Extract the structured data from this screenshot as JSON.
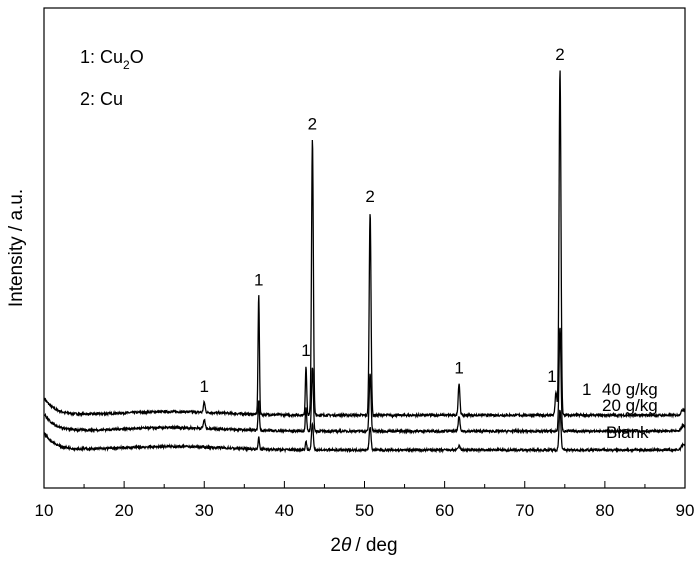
{
  "chart_data": {
    "type": "line",
    "title": "",
    "xlabel_prefix": "2",
    "xlabel_theta": "θ",
    "xlabel_suffix": "/ deg",
    "ylabel": "Intensity / a.u.",
    "xlim": [
      10,
      90
    ],
    "x_ticks": [
      "10",
      "20",
      "30",
      "40",
      "50",
      "60",
      "70",
      "80",
      "90"
    ],
    "y_ticks_labeled": false,
    "grid": false,
    "legend": {
      "placement": "top-left",
      "line1_prefix": "1: Cu",
      "line1_sub": "2",
      "line1_suffix": "O",
      "line2": "2: Cu"
    },
    "series": [
      {
        "name": "40 g/kg",
        "baseline": 0.12,
        "peaks": [
          {
            "x": 30.0,
            "h": 0.035,
            "w": 0.15
          },
          {
            "x": 36.8,
            "h": 0.41,
            "w": 0.12
          },
          {
            "x": 42.7,
            "h": 0.17,
            "w": 0.12
          },
          {
            "x": 43.5,
            "h": 0.95,
            "w": 0.16
          },
          {
            "x": 50.7,
            "h": 0.7,
            "w": 0.16
          },
          {
            "x": 61.8,
            "h": 0.11,
            "w": 0.15
          },
          {
            "x": 73.9,
            "h": 0.08,
            "w": 0.15
          },
          {
            "x": 74.4,
            "h": 1.19,
            "w": 0.17
          }
        ]
      },
      {
        "name": "20 g/kg",
        "baseline": 0.065,
        "peaks": [
          {
            "x": 30.0,
            "h": 0.03,
            "w": 0.15
          },
          {
            "x": 36.8,
            "h": 0.1,
            "w": 0.12
          },
          {
            "x": 42.7,
            "h": 0.08,
            "w": 0.12
          },
          {
            "x": 43.5,
            "h": 0.22,
            "w": 0.16
          },
          {
            "x": 50.7,
            "h": 0.2,
            "w": 0.16
          },
          {
            "x": 61.8,
            "h": 0.05,
            "w": 0.15
          },
          {
            "x": 74.4,
            "h": 0.36,
            "w": 0.17
          }
        ]
      },
      {
        "name": "Blank",
        "baseline": 0.0,
        "peaks": [
          {
            "x": 36.8,
            "h": 0.04,
            "w": 0.12
          },
          {
            "x": 42.7,
            "h": 0.03,
            "w": 0.12
          },
          {
            "x": 43.5,
            "h": 0.09,
            "w": 0.16
          },
          {
            "x": 50.7,
            "h": 0.08,
            "w": 0.16
          },
          {
            "x": 61.8,
            "h": 0.015,
            "w": 0.15
          },
          {
            "x": 74.4,
            "h": 0.14,
            "w": 0.17
          }
        ]
      }
    ],
    "series_labels": [
      {
        "text": "1",
        "series": 0
      },
      {
        "text": "40 g/kg",
        "series": 0
      },
      {
        "text": "20 g/kg",
        "series": 1
      },
      {
        "text": "Blank",
        "series": 2
      }
    ],
    "annotations": [
      {
        "text": "1",
        "x": 30.0,
        "series": 0
      },
      {
        "text": "1",
        "x": 36.8,
        "series": 0
      },
      {
        "text": "1",
        "x": 42.7,
        "series": 0
      },
      {
        "text": "2",
        "x": 43.5,
        "series": 0
      },
      {
        "text": "2",
        "x": 50.7,
        "series": 0
      },
      {
        "text": "1",
        "x": 61.8,
        "series": 0
      },
      {
        "text": "1",
        "x": 73.9,
        "series": 0
      },
      {
        "text": "2",
        "x": 74.4,
        "series": 0
      }
    ]
  }
}
